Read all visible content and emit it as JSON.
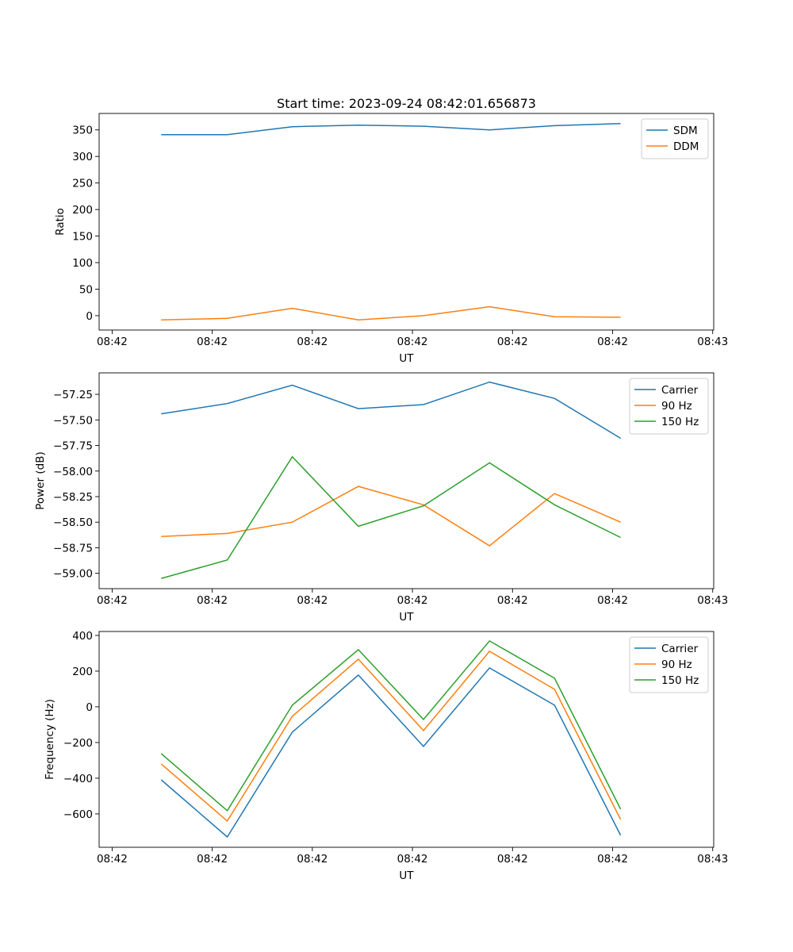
{
  "chart_data": [
    {
      "type": "line",
      "title": "Start time: 2023-09-24 08:42:01.656873",
      "xlabel": "UT",
      "ylabel": "Ratio",
      "x_seconds_after_0842": [
        4.9,
        11.5,
        18.0,
        24.6,
        31.1,
        37.7,
        44.2,
        50.8
      ],
      "xlim": [
        -1.3,
        60.1
      ],
      "xticks": [
        0,
        10,
        20,
        30,
        40,
        50,
        60
      ],
      "xtick_labels": [
        "08:42",
        "08:42",
        "08:42",
        "08:42",
        "08:42",
        "08:42",
        "08:43"
      ],
      "ylim": [
        -27,
        381
      ],
      "yticks": [
        0,
        50,
        100,
        150,
        200,
        250,
        300,
        350
      ],
      "ytick_labels": [
        "0",
        "50",
        "100",
        "150",
        "200",
        "250",
        "300",
        "350"
      ],
      "legend_placement": "upper-right",
      "series": [
        {
          "name": "SDM",
          "color": "#1f77b4",
          "values": [
            341,
            341,
            356,
            359,
            357,
            350,
            358,
            362
          ]
        },
        {
          "name": "DDM",
          "color": "#ff7f0e",
          "values": [
            -8,
            -5,
            14,
            -8,
            0,
            17,
            -2,
            -3
          ]
        }
      ]
    },
    {
      "type": "line",
      "title": "",
      "xlabel": "UT",
      "ylabel": "Power (dB)",
      "x_seconds_after_0842": [
        4.9,
        11.5,
        18.0,
        24.6,
        31.1,
        37.7,
        44.2,
        50.8
      ],
      "xlim": [
        -1.3,
        60.1
      ],
      "xticks": [
        0,
        10,
        20,
        30,
        40,
        50,
        60
      ],
      "xtick_labels": [
        "08:42",
        "08:42",
        "08:42",
        "08:42",
        "08:42",
        "08:42",
        "08:43"
      ],
      "ylim": [
        -59.15,
        -57.04
      ],
      "yticks": [
        -59.0,
        -58.75,
        -58.5,
        -58.25,
        -58.0,
        -57.75,
        -57.5,
        -57.25
      ],
      "ytick_labels": [
        "−59.00",
        "−58.75",
        "−58.50",
        "−58.25",
        "−58.00",
        "−57.75",
        "−57.50",
        "−57.25"
      ],
      "legend_placement": "upper-right",
      "series": [
        {
          "name": "Carrier",
          "color": "#1f77b4",
          "values": [
            -57.44,
            -57.34,
            -57.16,
            -57.39,
            -57.35,
            -57.13,
            -57.29,
            -57.68
          ]
        },
        {
          "name": "90 Hz",
          "color": "#ff7f0e",
          "values": [
            -58.64,
            -58.61,
            -58.5,
            -58.15,
            -58.33,
            -58.73,
            -58.22,
            -58.5
          ]
        },
        {
          "name": "150 Hz",
          "color": "#2ca02c",
          "values": [
            -59.05,
            -58.87,
            -57.86,
            -58.54,
            -58.34,
            -57.92,
            -58.33,
            -58.65
          ]
        }
      ]
    },
    {
      "type": "line",
      "title": "",
      "xlabel": "UT",
      "ylabel": "Frequency (Hz)",
      "x_seconds_after_0842": [
        4.9,
        11.5,
        18.0,
        24.6,
        31.1,
        37.7,
        44.2,
        50.8
      ],
      "xlim": [
        -1.3,
        60.1
      ],
      "xticks": [
        0,
        10,
        20,
        30,
        40,
        50,
        60
      ],
      "xtick_labels": [
        "08:42",
        "08:42",
        "08:42",
        "08:42",
        "08:42",
        "08:42",
        "08:43"
      ],
      "ylim": [
        -787,
        422
      ],
      "yticks": [
        -600,
        -400,
        -200,
        0,
        200,
        400
      ],
      "ytick_labels": [
        "−600",
        "−400",
        "−200",
        "0",
        "200",
        "400"
      ],
      "legend_placement": "upper-right",
      "series": [
        {
          "name": "Carrier",
          "color": "#1f77b4",
          "values": [
            -409,
            -729,
            -142,
            178,
            -222,
            218,
            9,
            -720
          ]
        },
        {
          "name": "90 Hz",
          "color": "#ff7f0e",
          "values": [
            -320,
            -640,
            -53,
            267,
            -133,
            311,
            98,
            -631
          ]
        },
        {
          "name": "150 Hz",
          "color": "#2ca02c",
          "values": [
            -262,
            -582,
            9,
            320,
            -71,
            369,
            160,
            -573
          ]
        }
      ]
    }
  ]
}
